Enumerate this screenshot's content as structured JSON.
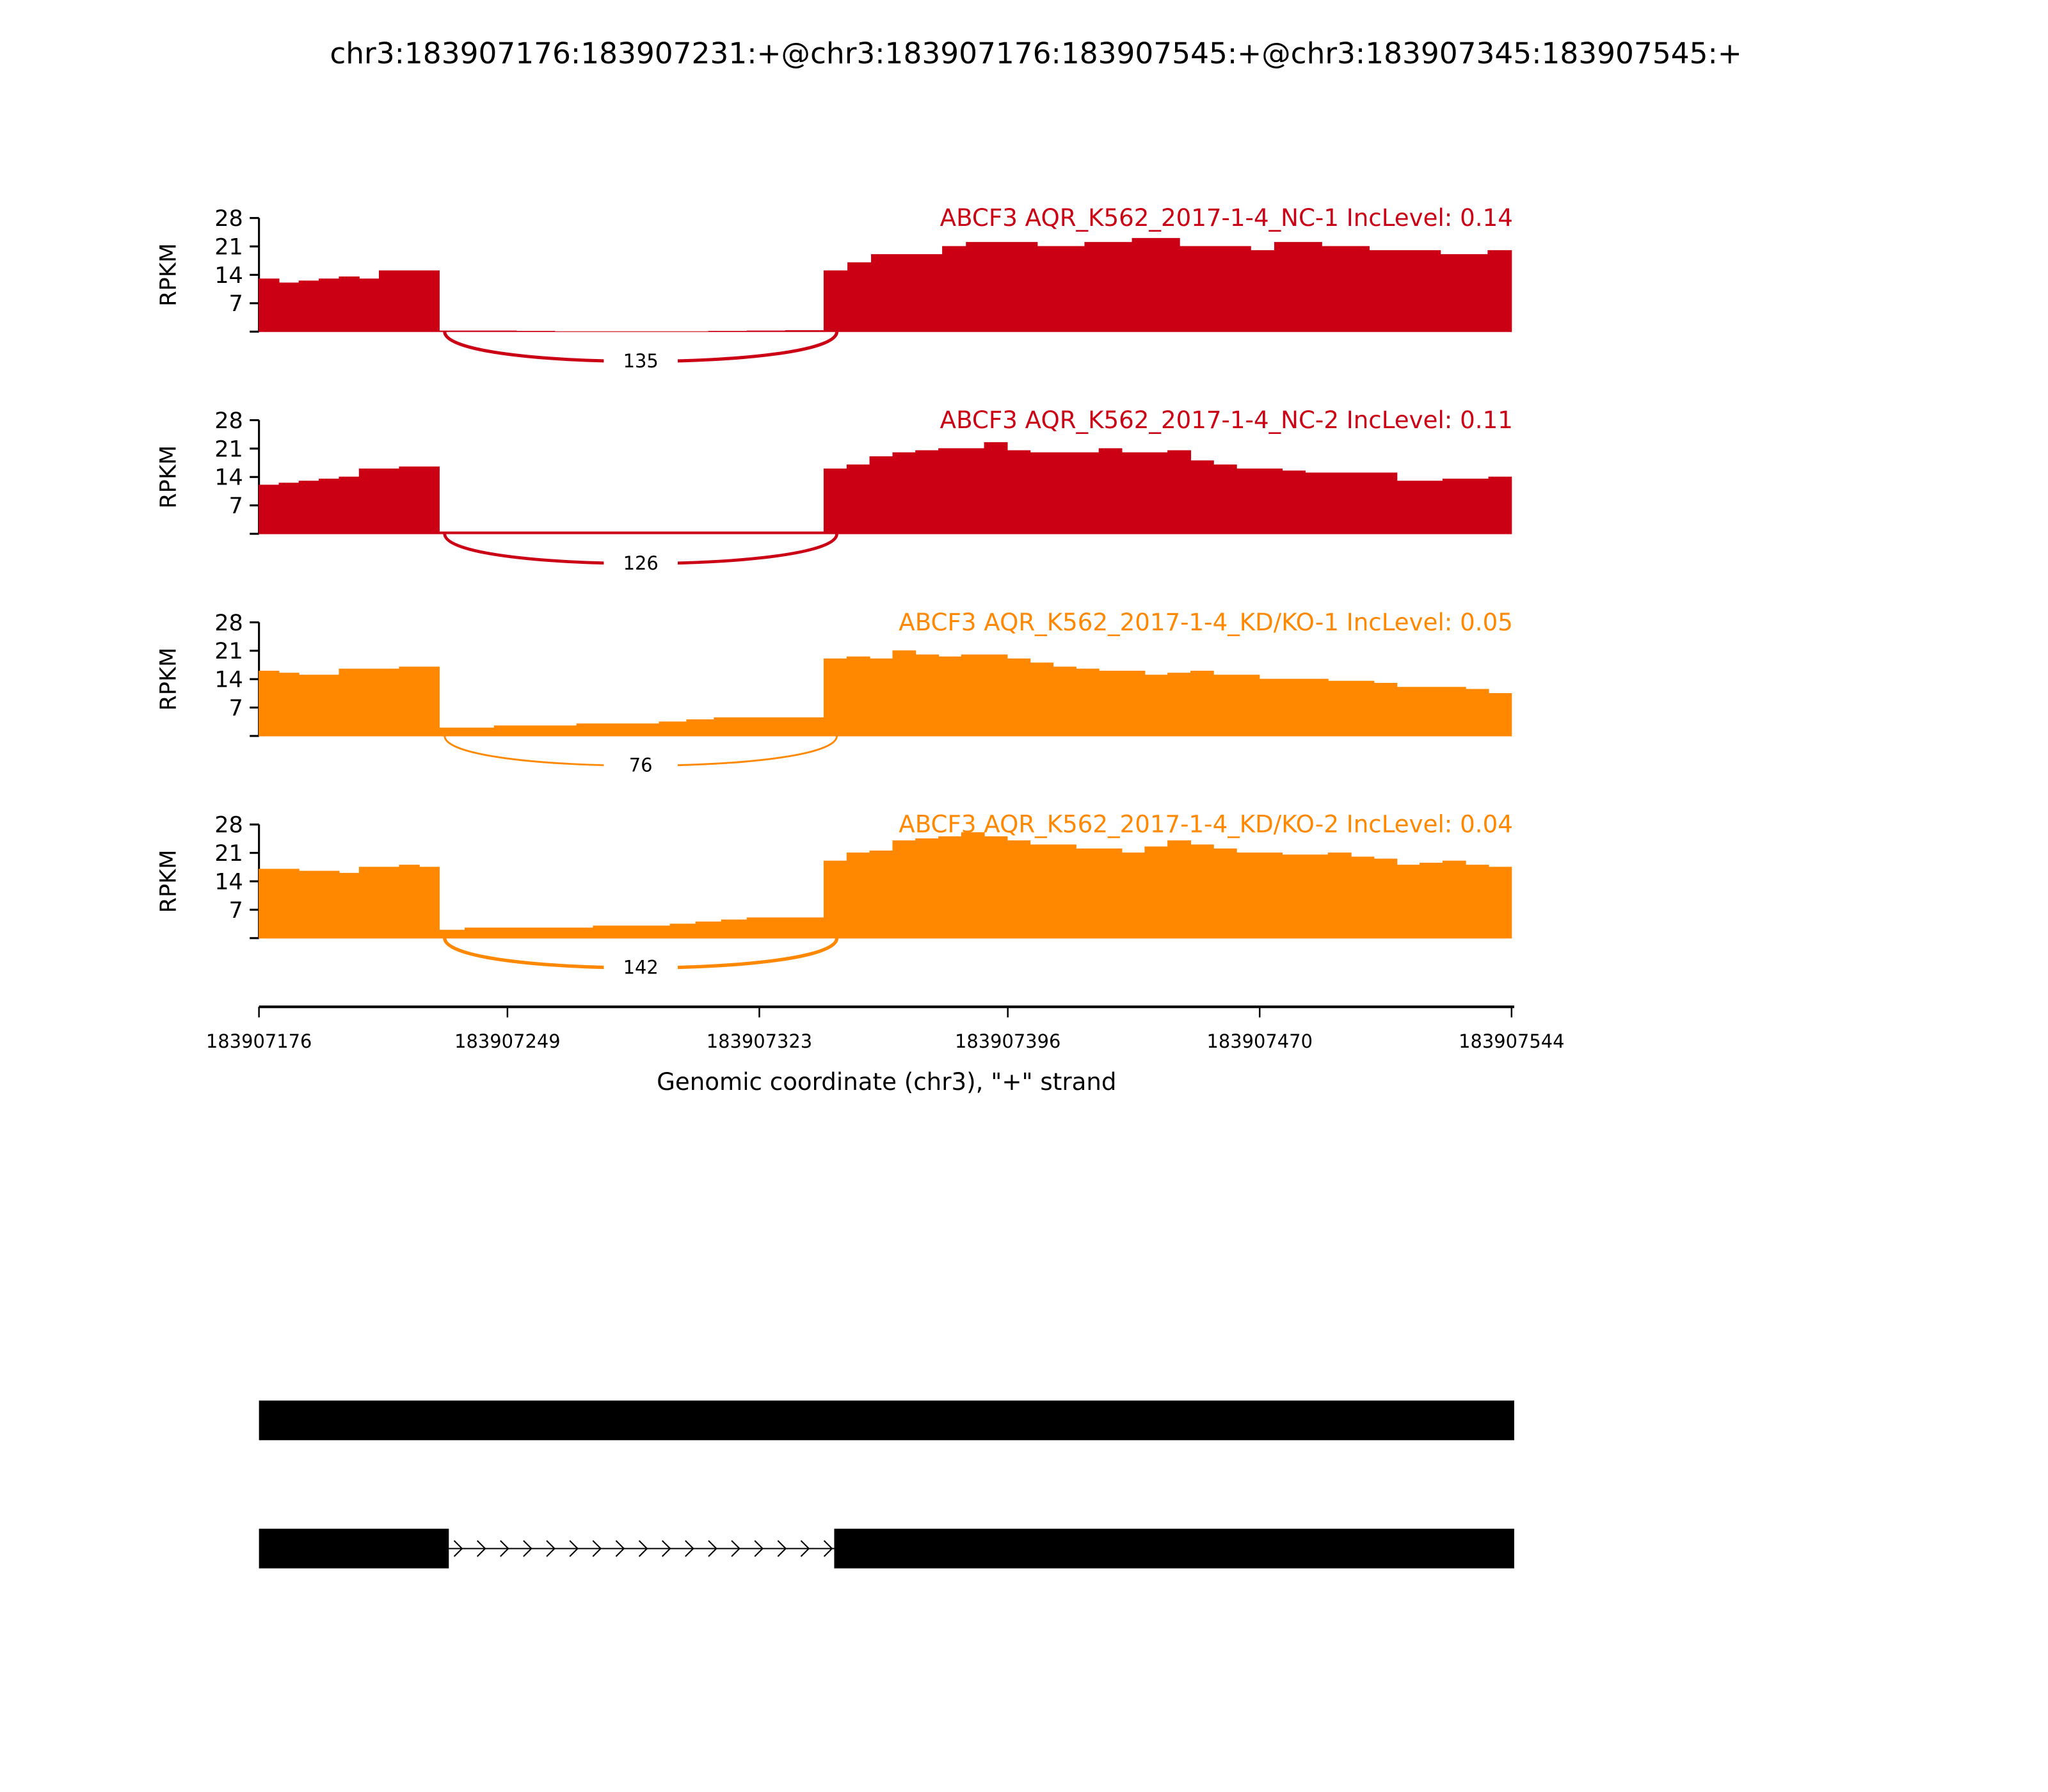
{
  "chart_data": {
    "type": "area",
    "title": "chr3:183907176:183907231:+@chr3:183907176:183907545:+@chr3:183907345:183907545:+",
    "xlabel": "Genomic coordinate (chr3), \"+\" strand",
    "ylabel": "RPKM",
    "xlim": [
      183907176,
      183907544
    ],
    "x_ticks": [
      "183907176",
      "183907249",
      "183907323",
      "183907396",
      "183907470",
      "183907544"
    ],
    "ylim": [
      0,
      28
    ],
    "y_ticks": [
      "7",
      "14",
      "21",
      "28"
    ],
    "exon1": [
      183907176,
      183907229
    ],
    "exon2": [
      183907342,
      183907544
    ],
    "junction": [
      183907229,
      183907345
    ],
    "tracks": [
      {
        "label": "ABCF3 AQR_K562_2017-1-4_NC-1 IncLevel: 0.14",
        "color": "#cc0015",
        "junction_count": "135",
        "exon1": [
          13,
          12,
          12.5,
          13,
          13.5,
          13,
          15,
          15,
          15
        ],
        "intron": [
          0.2,
          0.2,
          0.1,
          0,
          0,
          0,
          0,
          0.1,
          0.2,
          0.3
        ],
        "exon2": [
          15,
          17,
          19,
          19,
          19,
          21,
          22,
          22,
          22,
          21,
          21,
          22,
          22,
          23,
          23,
          21,
          21,
          21,
          20,
          22,
          22,
          21,
          21,
          20,
          20,
          20,
          19,
          19,
          20
        ]
      },
      {
        "label": "ABCF3 AQR_K562_2017-1-4_NC-2 IncLevel: 0.11",
        "color": "#cc0015",
        "junction_count": "126",
        "exon1": [
          12,
          12.5,
          13,
          13.5,
          14,
          16,
          16,
          16.5,
          16.5
        ],
        "intron": [
          0.5,
          0.5,
          0.5,
          0.5,
          0.5,
          0.5,
          0.5,
          0.5,
          0.5,
          0.5
        ],
        "exon2": [
          16,
          17,
          19,
          20,
          20.5,
          21,
          21,
          22.5,
          20.5,
          20,
          20,
          20,
          21,
          20,
          20,
          20.5,
          18,
          17,
          16,
          16,
          15.5,
          15,
          15,
          15,
          15,
          13,
          13,
          13.5,
          13.5,
          14
        ]
      },
      {
        "label": "ABCF3 AQR_K562_2017-1-4_KD/KO-1 IncLevel: 0.05",
        "color": "#ff8800",
        "junction_count": "76",
        "exon1": [
          16,
          15.5,
          15,
          15,
          16.5,
          16.5,
          16.5,
          17,
          17
        ],
        "intron": [
          2,
          2,
          2.5,
          2.5,
          2.5,
          3,
          3,
          3,
          3.5,
          4,
          4.5,
          4.5,
          4.5,
          4.5
        ],
        "exon2": [
          19,
          19.5,
          19,
          21,
          20,
          19.5,
          20,
          20,
          19,
          18,
          17,
          16.5,
          16,
          16,
          15,
          15.5,
          16,
          15,
          15,
          14,
          14,
          14,
          13.5,
          13.5,
          13,
          12,
          12,
          12,
          11.5,
          10.5
        ]
      },
      {
        "label": "ABCF3 AQR_K562_2017-1-4_KD/KO-2 IncLevel: 0.04",
        "color": "#ff8800",
        "junction_count": "142",
        "exon1": [
          17,
          17,
          16.5,
          16.5,
          16,
          17.5,
          17.5,
          18,
          17.5
        ],
        "intron": [
          2,
          2.5,
          2.5,
          2.5,
          2.5,
          2.5,
          3,
          3,
          3,
          3.5,
          4,
          4.5,
          5,
          5,
          5
        ],
        "exon2": [
          19,
          21,
          21.5,
          24,
          24.5,
          25,
          26,
          25,
          24,
          23,
          23,
          22,
          22,
          21,
          22.5,
          24,
          23,
          22,
          21,
          21,
          20.5,
          20.5,
          21,
          20,
          19.5,
          18,
          18.5,
          19,
          18,
          17.5
        ]
      }
    ],
    "isoforms": [
      {
        "exons": [
          [
            183907176,
            183907545
          ]
        ]
      },
      {
        "exons": [
          [
            183907176,
            183907231
          ],
          [
            183907345,
            183907545
          ]
        ]
      }
    ]
  }
}
